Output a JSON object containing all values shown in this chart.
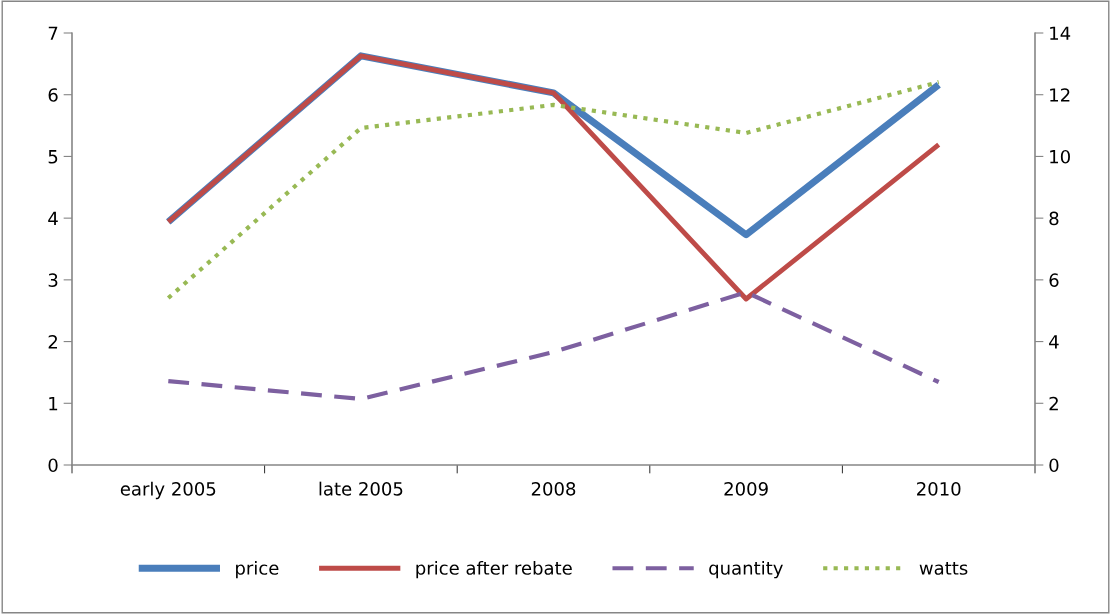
{
  "chart_data": {
    "type": "line",
    "categories": [
      "early 2005",
      "late 2005",
      "2008",
      "2009",
      "2010"
    ],
    "series": [
      {
        "name": "price",
        "color": "#4a7ebb",
        "values": [
          3.94,
          6.63,
          6.03,
          3.73,
          6.16
        ],
        "line_style": "solid"
      },
      {
        "name": "price after rebate",
        "color": "#be4b48",
        "values": [
          3.94,
          6.63,
          6.03,
          2.69,
          5.19
        ],
        "line_style": "solid"
      },
      {
        "name": "quantity",
        "color": "#7d60a0",
        "values": [
          2.72,
          2.14,
          3.66,
          5.6,
          2.69
        ],
        "line_style": "dashed",
        "axis": "y2"
      },
      {
        "name": "watts",
        "color": "#98b954",
        "values": [
          5.41,
          10.92,
          11.67,
          10.76,
          12.41
        ],
        "line_style": "dotted",
        "axis": "y2"
      }
    ],
    "ylim": [
      0,
      7
    ],
    "yticks": [
      0,
      1,
      2,
      3,
      4,
      5,
      6,
      7
    ],
    "y2lim": [
      0,
      14
    ],
    "y2ticks": [
      0,
      2,
      4,
      6,
      8,
      10,
      12,
      14
    ],
    "grid": false,
    "legend": "bottom",
    "marker": "none"
  }
}
